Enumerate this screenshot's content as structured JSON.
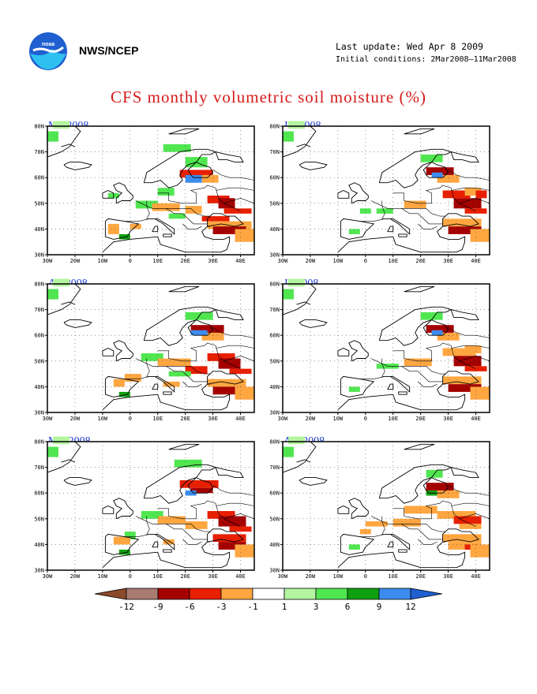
{
  "header": {
    "agency": "NWS/NCEP",
    "last_update": "Last update: Wed Apr 8 2009",
    "initial_conditions": "Initial conditions: 2Mar2008–11Mar2008",
    "logo_icon": "noaa-logo"
  },
  "title": "CFS monthly volumetric soil moisture (%)",
  "panels": [
    {
      "label": "Mar2008"
    },
    {
      "label": "Jun2008"
    },
    {
      "label": "Apr2008"
    },
    {
      "label": "Jul2008"
    },
    {
      "label": "May2008"
    },
    {
      "label": "Aug2008"
    }
  ],
  "axes": {
    "lon_ticks": [
      "30W",
      "20W",
      "10W",
      "0",
      "10E",
      "20E",
      "30E",
      "40E"
    ],
    "lat_ticks": [
      "80N",
      "70N",
      "60N",
      "50N",
      "40N",
      "30N"
    ]
  },
  "legend": {
    "ticks": [
      "-12",
      "-9",
      "-6",
      "-3",
      "-1",
      "1",
      "3",
      "6",
      "9",
      "12"
    ],
    "colors": [
      "#8b4a2b",
      "#a87c70",
      "#a50000",
      "#e81f00",
      "#ffa640",
      "#ffffff",
      "#b4f5a0",
      "#50e650",
      "#0fa00f",
      "#3c8cf0",
      "#1f5fd0"
    ]
  },
  "chart_data": {
    "type": "heatmap",
    "variable": "CFS monthly volumetric soil moisture (%)",
    "units": "%",
    "domain": {
      "lon": [
        -30,
        45
      ],
      "lat": [
        30,
        80
      ]
    },
    "months": [
      "Mar2008",
      "Apr2008",
      "May2008",
      "Jun2008",
      "Jul2008",
      "Aug2008"
    ],
    "levels": [
      -12,
      -9,
      -6,
      -3,
      -1,
      1,
      3,
      6,
      9,
      12
    ]
  }
}
